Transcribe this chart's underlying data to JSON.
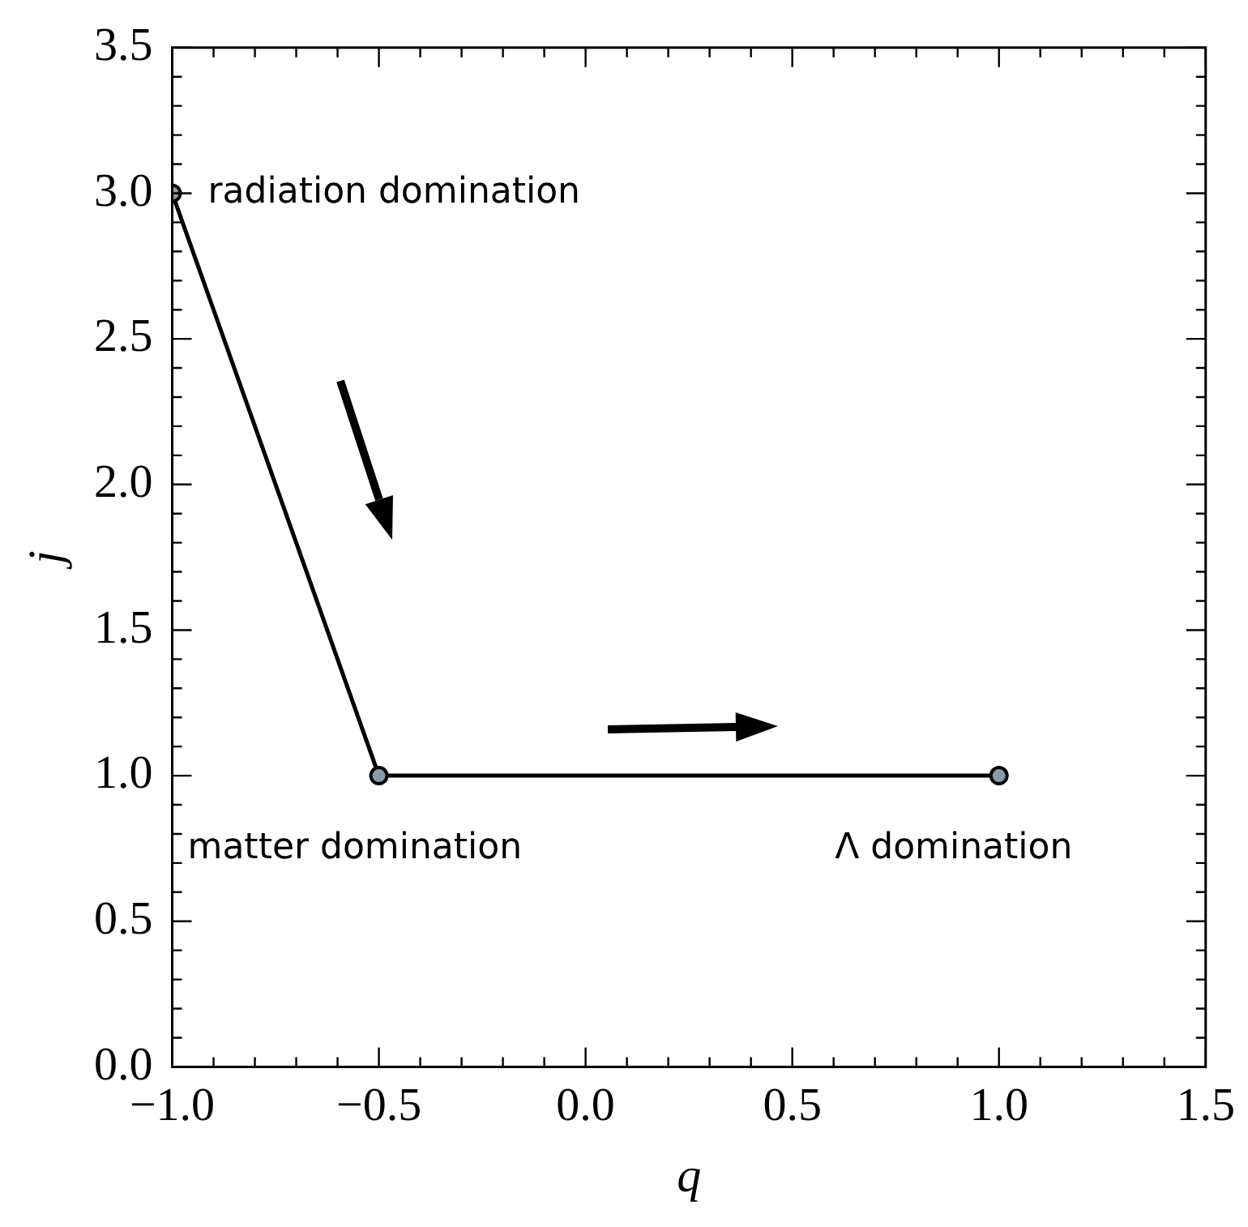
{
  "chart_data": {
    "type": "line",
    "xlabel": "q",
    "ylabel": "j",
    "x": [
      -1,
      -0.5,
      1
    ],
    "series": [
      {
        "color": "#000000",
        "values": [
          3,
          1,
          1
        ]
      }
    ],
    "marker": "circle",
    "line_style": "solid",
    "legend": false,
    "xlim": [
      -1,
      1.5
    ],
    "xticks": [
      {
        "value": -1,
        "label": "−1.0"
      },
      {
        "value": -0.5,
        "label": "−0.5"
      },
      {
        "value": 0,
        "label": "0.0"
      },
      {
        "value": 0.5,
        "label": "0.5"
      },
      {
        "value": 1,
        "label": "1.0"
      },
      {
        "value": 1.5,
        "label": "1.5"
      }
    ],
    "ylim": [
      0,
      3.5
    ],
    "yticks": [
      {
        "value": 0,
        "label": "0.0"
      },
      {
        "value": 0.5,
        "label": "0.5"
      },
      {
        "value": 1,
        "label": "1.0"
      },
      {
        "value": 1.5,
        "label": "1.5"
      },
      {
        "value": 2,
        "label": "2.0"
      },
      {
        "value": 2.5,
        "label": "2.5"
      },
      {
        "value": 3,
        "label": "3.0"
      },
      {
        "value": 3.5,
        "label": "3.5"
      }
    ],
    "annotations": [
      {
        "text": "radiation domination",
        "x": -1,
        "y": 3
      },
      {
        "text": "matter domination",
        "x": -0.5,
        "y": 1
      },
      {
        "text": "Λ domination",
        "x": 1,
        "y": 1
      }
    ]
  }
}
